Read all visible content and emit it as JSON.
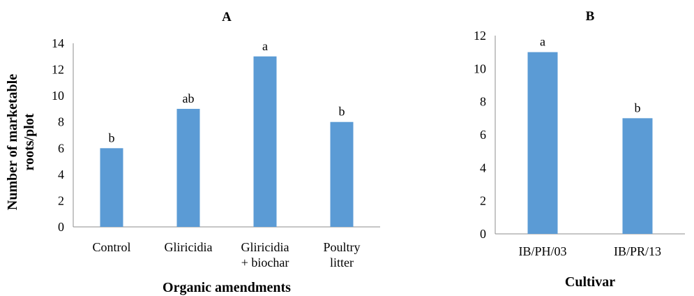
{
  "chart_data": [
    {
      "type": "bar",
      "title": "A",
      "xlabel": "Organic amendments",
      "ylabel_lines": [
        "Number of marketable",
        "roots/plot"
      ],
      "categories": [
        [
          "Control"
        ],
        [
          "Gliricidia"
        ],
        [
          "Gliricidia",
          "+ biochar"
        ],
        [
          "Poultry",
          "litter"
        ]
      ],
      "values": [
        6,
        9,
        13,
        8
      ],
      "data_labels": [
        "b",
        "ab",
        "a",
        "b"
      ],
      "ylim": [
        0,
        14
      ],
      "yticks": [
        0,
        2,
        4,
        6,
        8,
        10,
        12,
        14
      ],
      "bar_color": "#5b9bd5",
      "grid": false
    },
    {
      "type": "bar",
      "title": "B",
      "xlabel": "Cultivar",
      "ylabel_lines": [],
      "categories": [
        [
          "IB/PH/03"
        ],
        [
          "IB/PR/13"
        ]
      ],
      "values": [
        11,
        7
      ],
      "data_labels": [
        "a",
        "b"
      ],
      "ylim": [
        0,
        12
      ],
      "yticks": [
        0,
        2,
        4,
        6,
        8,
        10,
        12
      ],
      "bar_color": "#5b9bd5",
      "grid": false
    }
  ]
}
